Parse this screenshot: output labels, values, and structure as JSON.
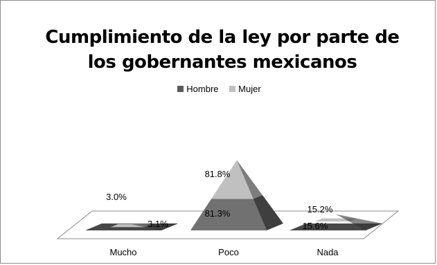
{
  "chart_data": {
    "type": "bar",
    "title_line1": "Cumplimiento de la ley por parte de",
    "title_line2": "los gobernantes mexicanos",
    "categories": [
      "Mucho",
      "Poco",
      "Nada"
    ],
    "series": [
      {
        "name": "Hombre",
        "values": [
          3.1,
          81.3,
          15.6
        ],
        "color": "#5a5a5a",
        "labels": [
          "3.1%",
          "81.3%",
          "15.6%"
        ]
      },
      {
        "name": "Mujer",
        "values": [
          3.0,
          81.8,
          15.2
        ],
        "color": "#c0c0c0",
        "labels": [
          "3.0%",
          "81.8%",
          "15.2%"
        ]
      }
    ],
    "legend_position": "top-center",
    "shape": "pyramid-3d",
    "grid": false
  }
}
